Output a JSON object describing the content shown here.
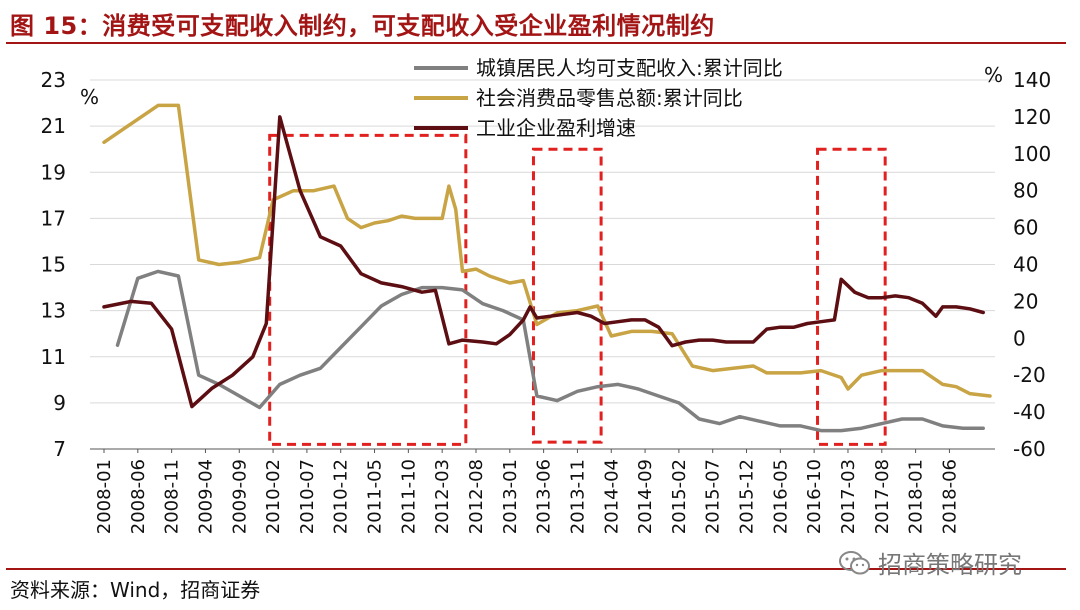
{
  "header": {
    "title": "图 15：消费受可支配收入制约，可支配收入受企业盈利情况制约"
  },
  "footer": {
    "source": "资料来源：Wind，招商证券",
    "watermark": "招商策略研究"
  },
  "chart_data": {
    "type": "line",
    "left_axis": {
      "unit": "%",
      "ylim": [
        7,
        23
      ],
      "ticks": [
        7,
        9,
        11,
        13,
        15,
        17,
        19,
        21,
        23
      ]
    },
    "right_axis": {
      "unit": "%",
      "ylim": [
        -60,
        140
      ],
      "ticks": [
        -60,
        -40,
        -20,
        0,
        20,
        40,
        60,
        80,
        100,
        120,
        140
      ]
    },
    "x_ticks": [
      "2008-01",
      "2008-06",
      "2008-11",
      "2009-04",
      "2009-09",
      "2010-02",
      "2010-07",
      "2010-12",
      "2011-05",
      "2011-10",
      "2012-03",
      "2012-08",
      "2013-01",
      "2013-06",
      "2013-11",
      "2014-04",
      "2014-09",
      "2015-02",
      "2015-07",
      "2015-12",
      "2016-05",
      "2016-10",
      "2017-03",
      "2017-08",
      "2018-01",
      "2018-06"
    ],
    "x_range": [
      0,
      131
    ],
    "legend_position": "top-center",
    "highlight_boxes": [
      {
        "from": 24.5,
        "to": 53.5,
        "ymin": 7.2,
        "ymax": 20.6
      },
      {
        "from": 63.5,
        "to": 73.5,
        "ymin": 7.3,
        "ymax": 20.0
      },
      {
        "from": 105.5,
        "to": 115.5,
        "ymin": 7.2,
        "ymax": 20.0
      }
    ],
    "series": [
      {
        "name": "城镇居民人均可支配收入:累计同比",
        "axis": "left",
        "color": "#808080",
        "points": [
          [
            2,
            11.5
          ],
          [
            5,
            14.4
          ],
          [
            8,
            14.7
          ],
          [
            11,
            14.5
          ],
          [
            14,
            10.2
          ],
          [
            17,
            9.8
          ],
          [
            23,
            8.8
          ],
          [
            26,
            9.8
          ],
          [
            29,
            10.2
          ],
          [
            32,
            10.5
          ],
          [
            35,
            11.4
          ],
          [
            38,
            12.3
          ],
          [
            41,
            13.2
          ],
          [
            44,
            13.7
          ],
          [
            47,
            14.0
          ],
          [
            50,
            14.0
          ],
          [
            53,
            13.9
          ],
          [
            56,
            13.3
          ],
          [
            59,
            13.0
          ],
          [
            62,
            12.6
          ],
          [
            64,
            9.3
          ],
          [
            67,
            9.1
          ],
          [
            70,
            9.5
          ],
          [
            73,
            9.7
          ],
          [
            76,
            9.8
          ],
          [
            79,
            9.6
          ],
          [
            82,
            9.3
          ],
          [
            85,
            9.0
          ],
          [
            88,
            8.3
          ],
          [
            91,
            8.1
          ],
          [
            94,
            8.4
          ],
          [
            97,
            8.2
          ],
          [
            100,
            8.0
          ],
          [
            103,
            8.0
          ],
          [
            106,
            7.8
          ],
          [
            109,
            7.8
          ],
          [
            112,
            7.9
          ],
          [
            115,
            8.1
          ],
          [
            118,
            8.3
          ],
          [
            121,
            8.3
          ],
          [
            124,
            8.0
          ],
          [
            127,
            7.9
          ],
          [
            130,
            7.9
          ]
        ]
      },
      {
        "name": "社会消费品零售总额:累计同比",
        "axis": "left",
        "color": "#c9a445",
        "points": [
          [
            0,
            20.3
          ],
          [
            4,
            21.1
          ],
          [
            8,
            21.9
          ],
          [
            11,
            21.9
          ],
          [
            14,
            15.2
          ],
          [
            17,
            15.0
          ],
          [
            20,
            15.1
          ],
          [
            23,
            15.3
          ],
          [
            25,
            17.8
          ],
          [
            28,
            18.2
          ],
          [
            31,
            18.2
          ],
          [
            34,
            18.4
          ],
          [
            36,
            17.0
          ],
          [
            38,
            16.6
          ],
          [
            40,
            16.8
          ],
          [
            42,
            16.9
          ],
          [
            44,
            17.1
          ],
          [
            46,
            17.0
          ],
          [
            48,
            17.0
          ],
          [
            50,
            17.0
          ],
          [
            51,
            18.4
          ],
          [
            52,
            17.4
          ],
          [
            53,
            14.7
          ],
          [
            55,
            14.8
          ],
          [
            57,
            14.5
          ],
          [
            60,
            14.2
          ],
          [
            62,
            14.3
          ],
          [
            64,
            12.4
          ],
          [
            67,
            12.9
          ],
          [
            70,
            13.0
          ],
          [
            73,
            13.2
          ],
          [
            75,
            11.9
          ],
          [
            78,
            12.1
          ],
          [
            81,
            12.1
          ],
          [
            84,
            12.0
          ],
          [
            87,
            10.6
          ],
          [
            90,
            10.4
          ],
          [
            93,
            10.5
          ],
          [
            96,
            10.6
          ],
          [
            98,
            10.3
          ],
          [
            100,
            10.3
          ],
          [
            103,
            10.3
          ],
          [
            106,
            10.4
          ],
          [
            109,
            10.1
          ],
          [
            110,
            9.6
          ],
          [
            112,
            10.2
          ],
          [
            115,
            10.4
          ],
          [
            118,
            10.4
          ],
          [
            121,
            10.4
          ],
          [
            124,
            9.8
          ],
          [
            126,
            9.7
          ],
          [
            128,
            9.4
          ],
          [
            131,
            9.3
          ]
        ]
      },
      {
        "name": "工业企业盈利增速",
        "axis": "right",
        "color": "#5c0e12",
        "points": [
          [
            0,
            17
          ],
          [
            4,
            20
          ],
          [
            7,
            19
          ],
          [
            10,
            5
          ],
          [
            13,
            -37
          ],
          [
            16,
            -27
          ],
          [
            19,
            -20
          ],
          [
            22,
            -10
          ],
          [
            24,
            8
          ],
          [
            26,
            120
          ],
          [
            29,
            80
          ],
          [
            32,
            55
          ],
          [
            35,
            50
          ],
          [
            38,
            35
          ],
          [
            41,
            30
          ],
          [
            44,
            28
          ],
          [
            47,
            25
          ],
          [
            49,
            26
          ],
          [
            51,
            -3
          ],
          [
            53,
            -1
          ],
          [
            56,
            -2
          ],
          [
            58,
            -3
          ],
          [
            60,
            2
          ],
          [
            62,
            10
          ],
          [
            63,
            17
          ],
          [
            64,
            11
          ],
          [
            66,
            12
          ],
          [
            68,
            13
          ],
          [
            70,
            14
          ],
          [
            72,
            12
          ],
          [
            74,
            8
          ],
          [
            76,
            9
          ],
          [
            78,
            10
          ],
          [
            80,
            10
          ],
          [
            82,
            6
          ],
          [
            84,
            -4
          ],
          [
            86,
            -2
          ],
          [
            88,
            -1
          ],
          [
            90,
            -1
          ],
          [
            92,
            -2
          ],
          [
            94,
            -2
          ],
          [
            96,
            -2
          ],
          [
            98,
            5
          ],
          [
            100,
            6
          ],
          [
            102,
            6
          ],
          [
            104,
            8
          ],
          [
            106,
            9
          ],
          [
            108,
            10
          ],
          [
            109,
            32
          ],
          [
            111,
            25
          ],
          [
            113,
            22
          ],
          [
            115,
            22
          ],
          [
            117,
            23
          ],
          [
            119,
            22
          ],
          [
            121,
            19
          ],
          [
            123,
            12
          ],
          [
            124,
            17
          ],
          [
            126,
            17
          ],
          [
            128,
            16
          ],
          [
            130,
            14
          ]
        ]
      }
    ]
  }
}
